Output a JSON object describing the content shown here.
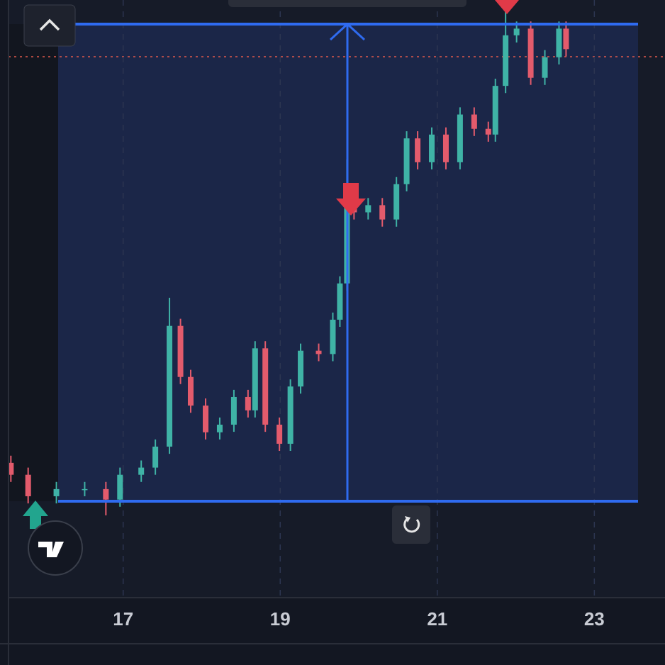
{
  "chart_data": {
    "type": "candlestick",
    "x": [
      15.57,
      15.79,
      16.15,
      16.51,
      16.78,
      16.96,
      17.23,
      17.41,
      17.59,
      17.73,
      17.86,
      18.05,
      18.23,
      18.41,
      18.59,
      18.68,
      18.81,
      18.99,
      19.13,
      19.26,
      19.49,
      19.67,
      19.76,
      19.85,
      19.94,
      20.12,
      20.3,
      20.48,
      20.61,
      20.75,
      20.93,
      21.11,
      21.29,
      21.47,
      21.65,
      21.74,
      21.87,
      22.01,
      22.19,
      22.37,
      22.55,
      22.64
    ],
    "open": [
      8,
      5.5,
      1,
      2.5,
      2.5,
      0.3,
      5.5,
      7,
      11.4,
      36.7,
      26,
      20,
      14.4,
      16,
      21.8,
      19,
      32,
      16,
      12,
      24,
      31.5,
      30.8,
      38,
      45.6,
      62,
      60.5,
      62,
      59,
      66.4,
      76,
      71,
      76.8,
      71,
      81,
      78,
      76.8,
      87,
      97.6,
      99,
      88.7,
      93,
      99
    ],
    "high": [
      9.5,
      7,
      4,
      4,
      4,
      7,
      8.5,
      12.9,
      42.6,
      38.2,
      27.5,
      21.5,
      17.5,
      23.3,
      23.3,
      33.5,
      33.5,
      17.5,
      25.5,
      33,
      33,
      39.5,
      47.1,
      71.6,
      63.5,
      63.5,
      63.5,
      67.9,
      77.5,
      77.5,
      78.3,
      78.3,
      82.5,
      82.5,
      79.5,
      88.5,
      103,
      100.5,
      100.5,
      94.5,
      100.5,
      100.5
    ],
    "low": [
      4,
      -0.5,
      -0.5,
      1,
      -3,
      -1.2,
      4,
      5.5,
      9.9,
      24.5,
      18.5,
      12.9,
      12.9,
      14.5,
      17.5,
      17.5,
      14.5,
      10.5,
      10.5,
      22.5,
      29.3,
      29.3,
      36.5,
      44.1,
      59,
      59,
      57.5,
      57.5,
      64.9,
      69.5,
      69.5,
      69.5,
      69.5,
      76.5,
      75.3,
      75.3,
      85.5,
      96.1,
      87.2,
      87.2,
      91.5,
      93.2
    ],
    "close": [
      5.5,
      1,
      2.5,
      2.5,
      0.3,
      5.5,
      7,
      11.4,
      36.7,
      26,
      20,
      14.4,
      16,
      21.8,
      19,
      32,
      16,
      12,
      24,
      31.5,
      30.8,
      38,
      45.6,
      62,
      60.5,
      62,
      59,
      66.4,
      76,
      71,
      76.8,
      71,
      81,
      78,
      76.8,
      87,
      97.6,
      99,
      88.7,
      93,
      99,
      94.7
    ],
    "up_color": "#3fb3a6",
    "down_color": "#e35b6c",
    "xlim": [
      15.54,
      23.9
    ],
    "xticks": [
      17,
      19,
      21,
      23
    ],
    "ylim": [
      -10,
      105
    ]
  }
}
